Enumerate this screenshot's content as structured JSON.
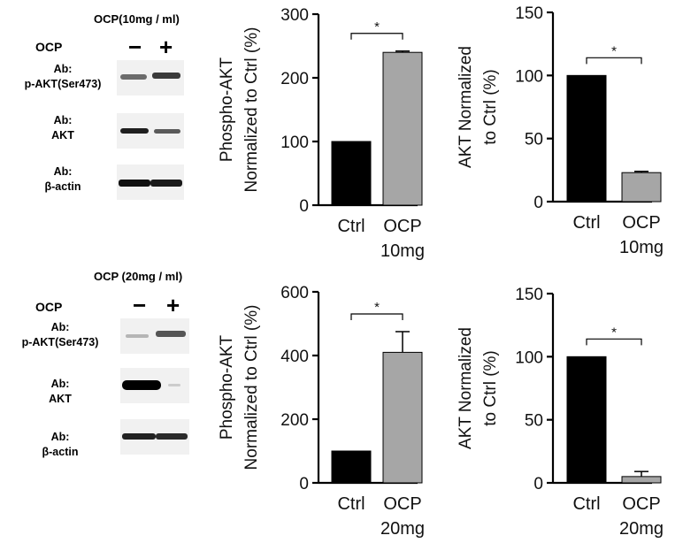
{
  "blot_panels": [
    {
      "title": "OCP(10mg / ml)",
      "treatment_label": "OCP",
      "minus": "−",
      "plus": "+",
      "antibodies": [
        {
          "line1": "Ab:",
          "line2": "p-AKT(Ser473)"
        },
        {
          "line1": "Ab:",
          "line2": "AKT"
        },
        {
          "line1": "Ab:",
          "line2": "β-actin"
        }
      ]
    },
    {
      "title": "OCP (20mg / ml)",
      "treatment_label": "OCP",
      "minus": "−",
      "plus": "+",
      "antibodies": [
        {
          "line1": "Ab:",
          "line2": "p-AKT(Ser473)"
        },
        {
          "line1": "Ab:",
          "line2": "AKT"
        },
        {
          "line1": "Ab:",
          "line2": "β-actin"
        }
      ]
    }
  ],
  "chart_data": [
    {
      "type": "bar",
      "categories": [
        "Ctrl",
        "OCP 10mg"
      ],
      "category_lines": [
        [
          "Ctrl"
        ],
        [
          "OCP",
          "10mg"
        ]
      ],
      "values": [
        100,
        240
      ],
      "errors": [
        0,
        2
      ],
      "colors": [
        "#000000",
        "#a6a6a6"
      ],
      "ylabel": [
        "Phospho-AKT",
        "Normalized to Ctrl (%)"
      ],
      "ylim": [
        0,
        300
      ],
      "yticks": [
        0,
        100,
        200,
        300
      ],
      "significance": "*"
    },
    {
      "type": "bar",
      "categories": [
        "Ctrl",
        "OCP 10mg"
      ],
      "category_lines": [
        [
          "Ctrl"
        ],
        [
          "OCP",
          "10mg"
        ]
      ],
      "values": [
        100,
        23
      ],
      "errors": [
        0,
        1
      ],
      "colors": [
        "#000000",
        "#a6a6a6"
      ],
      "ylabel": [
        "AKT Normalized",
        "to Ctrl (%)"
      ],
      "ylim": [
        0,
        150
      ],
      "yticks": [
        0,
        50,
        100,
        150
      ],
      "significance": "*"
    },
    {
      "type": "bar",
      "categories": [
        "Ctrl",
        "OCP 20mg"
      ],
      "category_lines": [
        [
          "Ctrl"
        ],
        [
          "OCP",
          "20mg"
        ]
      ],
      "values": [
        100,
        410
      ],
      "errors": [
        0,
        65
      ],
      "colors": [
        "#000000",
        "#a6a6a6"
      ],
      "ylabel": [
        "Phospho-AKT",
        "Normalized to Ctrl (%)"
      ],
      "ylim": [
        0,
        600
      ],
      "yticks": [
        0,
        200,
        400,
        600
      ],
      "significance": "*"
    },
    {
      "type": "bar",
      "categories": [
        "Ctrl",
        "OCP 20mg"
      ],
      "category_lines": [
        [
          "Ctrl"
        ],
        [
          "OCP",
          "20mg"
        ]
      ],
      "values": [
        100,
        5
      ],
      "errors": [
        0,
        4
      ],
      "colors": [
        "#000000",
        "#a6a6a6"
      ],
      "ylabel": [
        "AKT Normalized",
        "to Ctrl (%)"
      ],
      "ylim": [
        0,
        150
      ],
      "yticks": [
        0,
        50,
        100,
        150
      ],
      "significance": "*"
    }
  ]
}
